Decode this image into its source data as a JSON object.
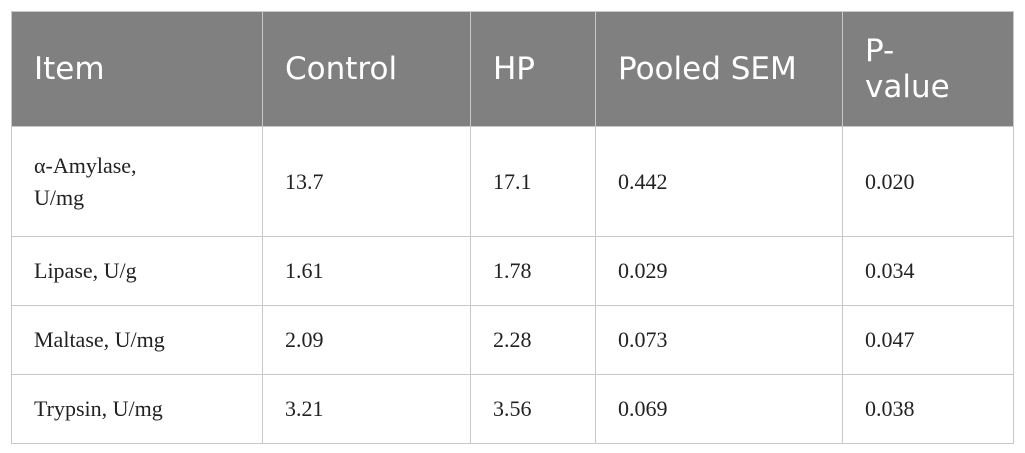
{
  "table": {
    "header": [
      "Item",
      "Control",
      "HP",
      "Pooled SEM",
      "P-value"
    ],
    "rows": [
      [
        "α-Amylase, U/mg",
        "13.7",
        "17.1",
        "0.442",
        "0.020"
      ],
      [
        "Lipase, U/g",
        "1.61",
        "1.78",
        "0.029",
        "0.034"
      ],
      [
        "Maltase, U/mg",
        "2.09",
        "2.28",
        "0.073",
        "0.047"
      ],
      [
        "Trypsin, U/mg",
        "3.21",
        "3.56",
        "0.069",
        "0.038"
      ]
    ]
  }
}
